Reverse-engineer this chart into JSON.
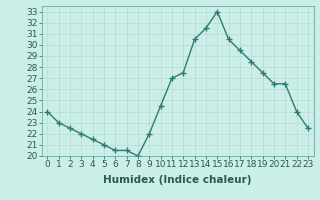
{
  "x": [
    0,
    1,
    2,
    3,
    4,
    5,
    6,
    7,
    8,
    9,
    10,
    11,
    12,
    13,
    14,
    15,
    16,
    17,
    18,
    19,
    20,
    21,
    22,
    23
  ],
  "y": [
    24,
    23,
    22.5,
    22,
    21.5,
    21,
    20.5,
    20.5,
    20,
    22,
    24.5,
    27,
    27.5,
    30.5,
    31.5,
    33,
    30.5,
    29.5,
    28.5,
    27.5,
    26.5,
    26.5,
    24,
    22.5
  ],
  "line_color": "#2d7d6e",
  "marker": "+",
  "bg_color": "#cceee8",
  "grid_major_color": "#b8ddd8",
  "grid_minor_color": "#d4eeea",
  "xlabel": "Humidex (Indice chaleur)",
  "xlim": [
    -0.5,
    23.5
  ],
  "ylim": [
    20,
    33.5
  ],
  "yticks": [
    20,
    21,
    22,
    23,
    24,
    25,
    26,
    27,
    28,
    29,
    30,
    31,
    32,
    33
  ],
  "xticks": [
    0,
    1,
    2,
    3,
    4,
    5,
    6,
    7,
    8,
    9,
    10,
    11,
    12,
    13,
    14,
    15,
    16,
    17,
    18,
    19,
    20,
    21,
    22,
    23
  ],
  "tick_font_size": 6.5,
  "xlabel_fontsize": 7.5,
  "linewidth": 1.0,
  "markersize": 4,
  "markeredgewidth": 1.0
}
